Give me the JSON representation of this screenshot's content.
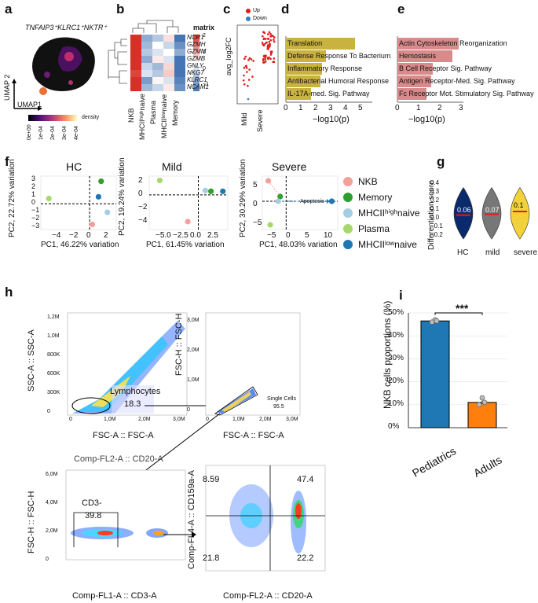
{
  "panels": {
    "a": {
      "label": "a",
      "title": "TNFAIP3⁺KLRC1⁺NKTR⁺",
      "xlabel": "UMAP1",
      "ylabel": "UMAP 2",
      "legend": "density",
      "ticks": [
        "0e+00",
        "1e-04",
        "2e-04",
        "3e-04",
        "4e-04"
      ]
    },
    "b": {
      "label": "b",
      "rows": [
        "NCR1",
        "GZMH",
        "GZMM",
        "GZMB",
        "GNLY",
        "NKG7",
        "KLRC1",
        "NCAM1"
      ],
      "cols": [
        "NKB",
        "MHCIIʰⁱᵍʰnaive",
        "Plasma",
        "MHCIIˡᵒʷnaive",
        "Memory"
      ],
      "legend_title": "matrix",
      "legend_ticks": [
        "2",
        "1",
        "0",
        "−1"
      ]
    },
    "c": {
      "label": "c",
      "legend": [
        "Up",
        "Down"
      ],
      "ylabel": "avg_log2FC",
      "cats": [
        "Mild",
        "Severe"
      ]
    },
    "d": {
      "label": "d",
      "xlabel": "−log10(p)",
      "ticks": [
        "0",
        "1",
        "2",
        "3",
        "4",
        "5"
      ],
      "bars": [
        "Translation",
        "Defense Response To Bacterium",
        "Inflammatory Response",
        "Antibacterial Humoral Response",
        "IL-17A-med. Sig. Pathway"
      ]
    },
    "e": {
      "label": "e",
      "xlabel": "−log10(p)",
      "ticks": [
        "0",
        "1",
        "2",
        "3"
      ],
      "bars": [
        "Actin Cytoskeleton Reorganization",
        "Hemostasis",
        "B Cell Receptor Sig. Pathway",
        "Antigen Receptor-Med. Sig. Pathway",
        "Fc Receptor Mot. Stimulatory Sig. Pathway"
      ]
    },
    "f": {
      "label": "f",
      "hc": {
        "title": "HC",
        "xlabel": "PC1, 46.22% variation",
        "ylabel": "PC2, 22.72% variation",
        "xticks": [
          "−4",
          "−2",
          "0",
          "2"
        ],
        "yticks": [
          "3",
          "2",
          "1",
          "0",
          "−1",
          "−2",
          "−3"
        ]
      },
      "mild": {
        "title": "Mild",
        "xlabel": "PC1, 61.45% variation",
        "ylabel": "PC2, 19.24% variation",
        "xticks": [
          "−5.0",
          "−2.5",
          "0.0",
          "2.5"
        ],
        "yticks": [
          "2",
          "0",
          "−2",
          "−4"
        ]
      },
      "severe": {
        "title": "Severe",
        "xlabel": "PC1, 48.03% variation",
        "ylabel": "PC2, 30.29% variation",
        "xticks": [
          "−5",
          "0",
          "5",
          "10"
        ],
        "yticks": [
          "5",
          "0",
          "−5"
        ],
        "annotation": "Apoptosis"
      },
      "legend": [
        "NKB",
        "Memory",
        "MHCIIʰⁱᵍʰnaive",
        "Plasma",
        "MHCIIˡᵒʷnaive"
      ]
    },
    "g": {
      "label": "g",
      "ylabel": "Differentiation score",
      "cats": [
        "HC",
        "mild",
        "severe"
      ],
      "vals": [
        "0.06",
        "0.07",
        "0.1"
      ],
      "yticks": [
        "0.4",
        "0.3",
        "0.2",
        "0.1",
        "0.0",
        "−0.1",
        "−0.2"
      ]
    },
    "h": {
      "label": "h",
      "p1": {
        "xlabel": "FSC-A :: FSC-A",
        "ylabel": "SSC-A :: SSC-A",
        "gate": "Lymphocytes",
        "value": "18.3",
        "yticks": [
          "1,2M",
          "1,0M",
          "800K",
          "600K",
          "300K",
          "0"
        ],
        "xticks": [
          "0",
          "1,0M",
          "2,0M",
          "3,0M"
        ]
      },
      "p2": {
        "xlabel": "FSC-A :: FSC-A",
        "ylabel": "FSC-H :: FSC-H",
        "gate": "Single Cells",
        "value": "95.5",
        "yticks": [
          "3,0M",
          "2,0M",
          "1,0M",
          "0"
        ],
        "xticks": [
          "0",
          "1,0M",
          "2,0M",
          "3,0M"
        ]
      },
      "p3": {
        "title": "Comp-FL2-A :: CD20-A",
        "xlabel": "Comp-FL1-A :: CD3-A",
        "ylabel": "FSC-H :: FSC-H",
        "gate": "CD3-",
        "value": "39.8",
        "yticks": [
          "6,0M",
          "4,0M",
          "2,0M",
          "0"
        ]
      },
      "p4": {
        "xlabel": "Comp-FL2-A :: CD20-A",
        "ylabel": "Comp-FL4-A :: CD159a-A",
        "q": [
          "8.59",
          "47.4",
          "21.8",
          "22.2"
        ]
      }
    },
    "i": {
      "label": "i",
      "ylabel": "NKB cells proportions (%)",
      "cats": [
        "Pediatrics",
        "Adults"
      ],
      "sig": "***",
      "yticks": [
        "50%",
        "40%",
        "30%",
        "20%",
        "10%",
        "0%"
      ]
    }
  },
  "chart_data": [
    {
      "type": "bar",
      "panel": "i",
      "categories": [
        "Pediatrics",
        "Adults"
      ],
      "values": [
        46.5,
        11
      ],
      "ylim": [
        0,
        50
      ],
      "ylabel": "NKB cells proportions (%)"
    },
    {
      "type": "bar",
      "panel": "d",
      "categories": [
        "Translation",
        "Defense Response To Bacterium",
        "Inflammatory Response",
        "Antibacterial Humoral Response",
        "IL-17A-med. Sig. Pathway"
      ],
      "values": [
        4.5,
        2.6,
        2.3,
        2.2,
        1.6
      ],
      "xlabel": "−log10(p)"
    },
    {
      "type": "bar",
      "panel": "e",
      "categories": [
        "Actin Cytoskeleton Reorganization",
        "Hemostasis",
        "B Cell Receptor Sig. Pathway",
        "Antigen Receptor-Med. Sig. Pathway",
        "Fc Receptor Mot. Stimulatory Sig. Pathway"
      ],
      "values": [
        2.8,
        2.5,
        1.6,
        1.5,
        1.3
      ],
      "xlabel": "−log10(p)"
    },
    {
      "type": "scatter",
      "panel": "f-HC",
      "series": [
        {
          "name": "NKB",
          "x": 0.3,
          "y": -2.4
        },
        {
          "name": "Memory",
          "x": 1.3,
          "y": 2.6
        },
        {
          "name": "MHCIIʰⁱᵍʰnaive",
          "x": 2.0,
          "y": -1.0
        },
        {
          "name": "Plasma",
          "x": -4.6,
          "y": 0.6
        },
        {
          "name": "MHCIIˡᵒʷnaive",
          "x": 1.0,
          "y": 0.8
        }
      ]
    },
    {
      "type": "scatter",
      "panel": "f-Mild",
      "series": [
        {
          "name": "NKB",
          "x": -1.5,
          "y": -3.7
        },
        {
          "name": "Memory",
          "x": 1.8,
          "y": 0.5
        },
        {
          "name": "MHCIIʰⁱᵍʰnaive",
          "x": 1.0,
          "y": 0.6
        },
        {
          "name": "Plasma",
          "x": -5.5,
          "y": 2.0
        },
        {
          "name": "MHCIIˡᵒʷnaive",
          "x": 3.5,
          "y": 0.5
        }
      ]
    },
    {
      "type": "scatter",
      "panel": "f-Severe",
      "series": [
        {
          "name": "NKB",
          "x": -4.5,
          "y": 6.5
        },
        {
          "name": "Memory",
          "x": -1.5,
          "y": 1.5
        },
        {
          "name": "MHCIIʰⁱᵍʰnaive",
          "x": -2.0,
          "y": 0.0
        },
        {
          "name": "Plasma",
          "x": -4.0,
          "y": -7.5
        },
        {
          "name": "MHCIIˡᵒʷnaive",
          "x": 11.5,
          "y": 0.0
        }
      ]
    }
  ],
  "colors": {
    "NKB": "#f4a09a",
    "Memory": "#2ca02c",
    "MHCIIhigh": "#a6cee3",
    "Plasma": "#a6d96a",
    "MHCIIlow": "#1f78b4"
  }
}
